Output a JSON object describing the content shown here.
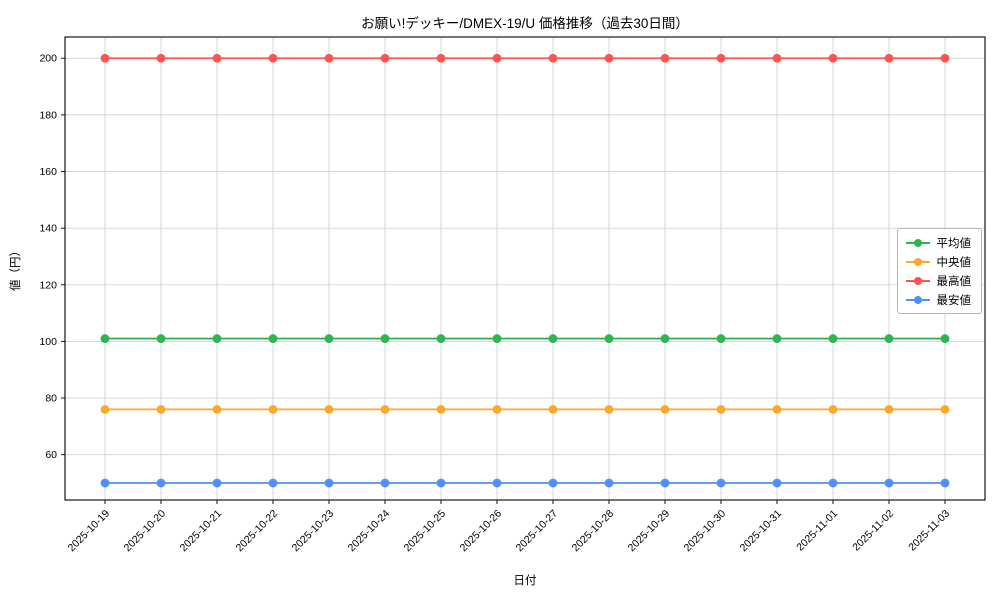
{
  "chart_data": {
    "type": "line",
    "title": "お願い!デッキー/DMEX-19/U 価格推移（過去30日間）",
    "xlabel": "日付",
    "ylabel": "値（円）",
    "x": [
      "2025-10-19",
      "2025-10-20",
      "2025-10-21",
      "2025-10-22",
      "2025-10-23",
      "2025-10-24",
      "2025-10-25",
      "2025-10-26",
      "2025-10-27",
      "2025-10-28",
      "2025-10-29",
      "2025-10-30",
      "2025-10-31",
      "2025-11-01",
      "2025-11-02",
      "2025-11-03"
    ],
    "yticks": [
      60,
      80,
      100,
      120,
      140,
      160,
      180,
      200
    ],
    "ylim": [
      44,
      207.5
    ],
    "grid": true,
    "legend_position": "center right",
    "series": [
      {
        "name": "平均値",
        "color": "#2db54f",
        "values": [
          101,
          101,
          101,
          101,
          101,
          101,
          101,
          101,
          101,
          101,
          101,
          101,
          101,
          101,
          101,
          101
        ]
      },
      {
        "name": "中央値",
        "color": "#ffa726",
        "values": [
          76,
          76,
          76,
          76,
          76,
          76,
          76,
          76,
          76,
          76,
          76,
          76,
          76,
          76,
          76,
          76
        ]
      },
      {
        "name": "最高値",
        "color": "#ff5252",
        "values": [
          200,
          200,
          200,
          200,
          200,
          200,
          200,
          200,
          200,
          200,
          200,
          200,
          200,
          200,
          200,
          200
        ]
      },
      {
        "name": "最安値",
        "color": "#4d90fe",
        "values": [
          50,
          50,
          50,
          50,
          50,
          50,
          50,
          50,
          50,
          50,
          50,
          50,
          50,
          50,
          50,
          50
        ]
      }
    ]
  }
}
